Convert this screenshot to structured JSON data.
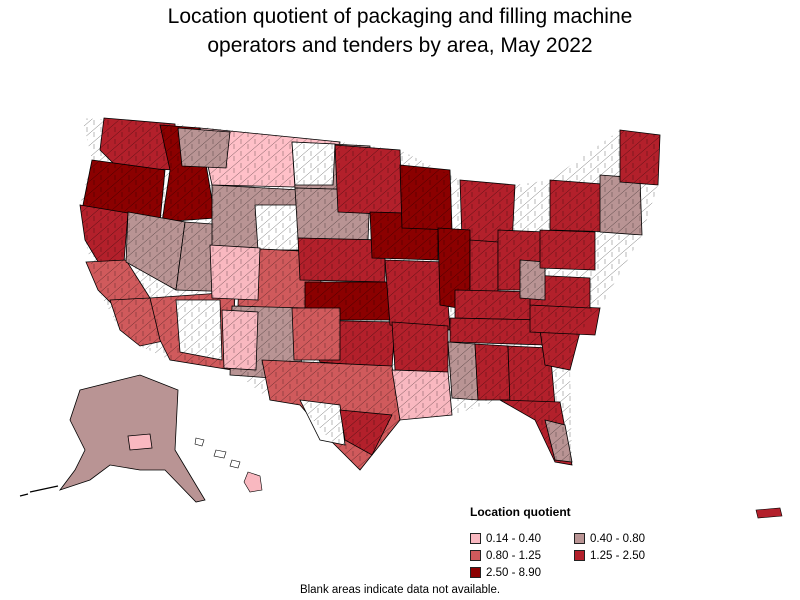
{
  "title": "Location quotient of packaging and filling machine operators and tenders by area, May 2022",
  "title_lines": [
    "Location quotient of packaging and filling machine",
    "operators and tenders by area, May 2022"
  ],
  "legend": {
    "title": "Location quotient",
    "items": [
      {
        "label": "0.14 - 0.40",
        "color": "#f9b8c0"
      },
      {
        "label": "0.40 - 0.80",
        "color": "#b99494"
      },
      {
        "label": "0.80 - 1.25",
        "color": "#d05a5c"
      },
      {
        "label": "1.25 - 2.50",
        "color": "#b3202b"
      },
      {
        "label": "2.50 - 8.90",
        "color": "#8b0000"
      }
    ]
  },
  "note": "Blank areas indicate data not available.",
  "colors": {
    "c1": "#f9b8c0",
    "c2": "#b99494",
    "c3": "#d05a5c",
    "c4": "#b3202b",
    "c5": "#8b0000",
    "blank": "#ffffff",
    "border": "#000000"
  }
}
